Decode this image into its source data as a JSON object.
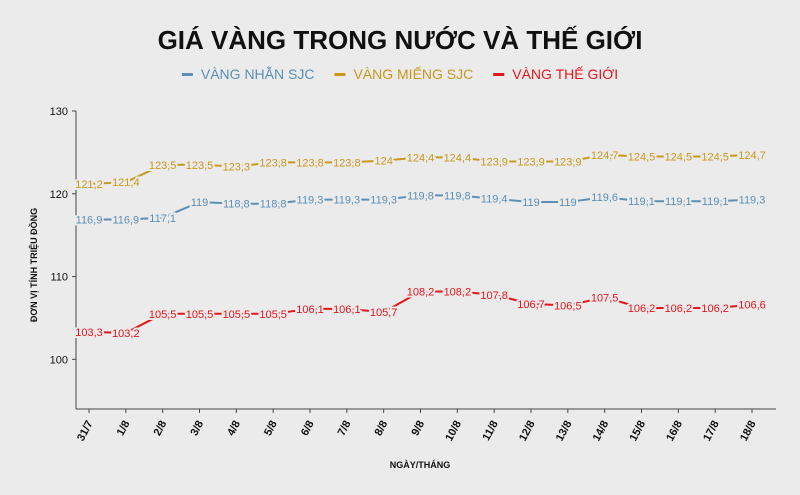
{
  "chart_data": {
    "type": "line",
    "title": "GIÁ VÀNG TRONG NƯỚC VÀ THẾ GIỚI",
    "xlabel": "NGÀY/THÁNG",
    "ylabel": "ĐƠN VỊ TÍNH TRIỆU ĐỒNG",
    "ylim": [
      94,
      130
    ],
    "yticks": [
      "100",
      "110",
      "120",
      "130"
    ],
    "grid": false,
    "legend_position": "top-center",
    "categories": [
      "31/7",
      "1/8",
      "2/8",
      "3/8",
      "4/8",
      "5/8",
      "6/8",
      "7/8",
      "8/8",
      "9/8",
      "10/8",
      "11/8",
      "12/8",
      "13/8",
      "14/8",
      "15/8",
      "16/8",
      "17/8",
      "18/8"
    ],
    "series": [
      {
        "name": "VÀNG NHẪN SJC",
        "color": "#5b8fb5",
        "values": [
          116.9,
          116.9,
          117.1,
          119,
          118.8,
          118.8,
          119.3,
          119.3,
          119.3,
          119.8,
          119.8,
          119.4,
          119,
          119,
          119.6,
          119.1,
          119.1,
          119.1,
          119.3
        ],
        "labels": [
          "116,9",
          "116,9",
          "117,1",
          "119",
          "118,8",
          "118,8",
          "119,3",
          "119,3",
          "119,3",
          "119,8",
          "119,8",
          "119,4",
          "119",
          "119",
          "119,6",
          "119,1",
          "119,1",
          "119,1",
          "119,3"
        ]
      },
      {
        "name": "VÀNG MIẾNG SJC",
        "color": "#c9981c",
        "values": [
          121.2,
          121.4,
          123.5,
          123.5,
          123.3,
          123.8,
          123.8,
          123.8,
          124,
          124.4,
          124.4,
          123.9,
          123.9,
          123.9,
          124.7,
          124.5,
          124.5,
          124.5,
          124.7
        ],
        "labels": [
          "121,2",
          "121,4",
          "123,5",
          "123,5",
          "123,3",
          "123,8",
          "123,8",
          "123,8",
          "124",
          "124,4",
          "124,4",
          "123,9",
          "123,9",
          "123,9",
          "124,7",
          "124,5",
          "124,5",
          "124,5",
          "124,7"
        ]
      },
      {
        "name": "VÀNG THẾ GIỚI",
        "color": "#e8141c",
        "values": [
          103.3,
          103.2,
          105.5,
          105.5,
          105.5,
          105.5,
          106.1,
          106.1,
          105.7,
          108.2,
          108.2,
          107.8,
          106.7,
          106.5,
          107.5,
          106.2,
          106.2,
          106.2,
          106.6
        ],
        "labels": [
          "103,3",
          "103,2",
          "105,5",
          "105,5",
          "105,5",
          "105,5",
          "106,1",
          "106,1",
          "105,7",
          "108,2",
          "108,2",
          "107,8",
          "106,7",
          "106,5",
          "107,5",
          "106,2",
          "106,2",
          "106,2",
          "106,6"
        ]
      }
    ]
  }
}
